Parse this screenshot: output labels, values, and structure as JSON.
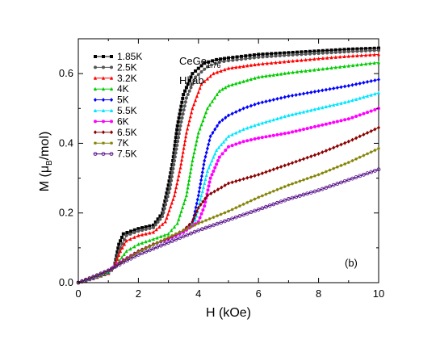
{
  "chart_data": {
    "type": "line",
    "xlabel_prefix": "H (kOe)",
    "xlabel": "H (kOe)",
    "ylabel_main": "M (",
    "ylabel_mu": "μ",
    "ylabel_sub": "B",
    "ylabel_tail": "/mol)",
    "xlim": [
      0,
      10
    ],
    "ylim": [
      0,
      0.7
    ],
    "xticks": [
      "0",
      "2",
      "4",
      "6",
      "8",
      "10"
    ],
    "yticks": [
      "0.0",
      "0.2",
      "0.4",
      "0.6"
    ],
    "grid": false,
    "legend_position": "top-left",
    "annotations": {
      "compound": "CeGe",
      "compound_sub": "1.76",
      "field_dir": "H||ab",
      "panel": "(b)"
    },
    "series": [
      {
        "name": "1.85K",
        "color": "#000000",
        "marker": "square",
        "x": [
          0,
          0.5,
          1.0,
          1.2,
          1.35,
          1.5,
          2.0,
          2.5,
          2.8,
          3.0,
          3.15,
          3.3,
          3.5,
          3.8,
          4.2,
          4.6,
          5.0,
          6.0,
          7.0,
          8.0,
          9.0,
          10.0
        ],
        "y": [
          0,
          0.012,
          0.027,
          0.045,
          0.11,
          0.14,
          0.155,
          0.165,
          0.2,
          0.28,
          0.35,
          0.45,
          0.54,
          0.6,
          0.63,
          0.64,
          0.645,
          0.655,
          0.66,
          0.665,
          0.67,
          0.673
        ]
      },
      {
        "name": "2.5K",
        "color": "#555555",
        "marker": "circle",
        "x": [
          0,
          0.5,
          1.0,
          1.2,
          1.4,
          1.6,
          2.0,
          2.5,
          2.8,
          3.05,
          3.2,
          3.4,
          3.6,
          3.9,
          4.3,
          4.7,
          5.0,
          6.0,
          7.0,
          8.0,
          9.0,
          10.0
        ],
        "y": [
          0,
          0.012,
          0.027,
          0.045,
          0.1,
          0.135,
          0.148,
          0.158,
          0.19,
          0.27,
          0.35,
          0.45,
          0.53,
          0.59,
          0.62,
          0.633,
          0.637,
          0.647,
          0.653,
          0.658,
          0.663,
          0.667
        ]
      },
      {
        "name": "3.2K",
        "color": "#ff0000",
        "marker": "triangle",
        "x": [
          0,
          0.5,
          1.0,
          1.2,
          1.4,
          1.6,
          2.0,
          2.5,
          2.9,
          3.2,
          3.4,
          3.6,
          3.8,
          4.1,
          4.5,
          5.0,
          6.0,
          7.0,
          8.0,
          9.0,
          10.0
        ],
        "y": [
          0,
          0.013,
          0.028,
          0.045,
          0.09,
          0.12,
          0.135,
          0.145,
          0.175,
          0.25,
          0.33,
          0.43,
          0.5,
          0.57,
          0.6,
          0.615,
          0.627,
          0.635,
          0.643,
          0.65,
          0.655
        ]
      },
      {
        "name": "4K",
        "color": "#00cc00",
        "marker": "triangle",
        "x": [
          0,
          0.5,
          1.0,
          1.3,
          1.6,
          2.0,
          2.5,
          3.0,
          3.3,
          3.6,
          3.8,
          4.0,
          4.3,
          4.7,
          5.0,
          6.0,
          7.0,
          8.0,
          9.0,
          10.0
        ],
        "y": [
          0,
          0.014,
          0.03,
          0.055,
          0.09,
          0.11,
          0.125,
          0.14,
          0.17,
          0.25,
          0.35,
          0.43,
          0.5,
          0.55,
          0.565,
          0.59,
          0.602,
          0.612,
          0.622,
          0.632
        ]
      },
      {
        "name": "5K",
        "color": "#0000ff",
        "marker": "diamond",
        "x": [
          0,
          0.5,
          1.0,
          1.5,
          2.0,
          2.5,
          3.0,
          3.5,
          3.8,
          4.0,
          4.2,
          4.4,
          4.7,
          5.0,
          5.5,
          6.0,
          7.0,
          8.0,
          9.0,
          10.0
        ],
        "y": [
          0,
          0.014,
          0.032,
          0.065,
          0.09,
          0.11,
          0.125,
          0.145,
          0.17,
          0.25,
          0.35,
          0.42,
          0.46,
          0.48,
          0.5,
          0.515,
          0.535,
          0.55,
          0.565,
          0.583
        ]
      },
      {
        "name": "5.5K",
        "color": "#00e5ff",
        "marker": "triangle",
        "x": [
          0,
          0.5,
          1.0,
          1.5,
          2.0,
          2.5,
          3.0,
          3.5,
          3.9,
          4.1,
          4.3,
          4.6,
          5.0,
          5.5,
          6.0,
          7.0,
          8.0,
          9.0,
          10.0
        ],
        "y": [
          0,
          0.014,
          0.033,
          0.065,
          0.09,
          0.11,
          0.125,
          0.145,
          0.18,
          0.25,
          0.32,
          0.38,
          0.42,
          0.44,
          0.455,
          0.48,
          0.5,
          0.52,
          0.545
        ]
      },
      {
        "name": "6K",
        "color": "#ff00ff",
        "marker": "circle",
        "x": [
          0,
          0.5,
          1.0,
          1.5,
          2.0,
          2.5,
          3.0,
          3.5,
          4.0,
          4.2,
          4.4,
          4.7,
          5.0,
          5.5,
          6.0,
          7.0,
          8.0,
          9.0,
          10.0
        ],
        "y": [
          0,
          0.015,
          0.034,
          0.065,
          0.09,
          0.11,
          0.125,
          0.145,
          0.175,
          0.22,
          0.3,
          0.36,
          0.39,
          0.405,
          0.415,
          0.43,
          0.45,
          0.47,
          0.5
        ]
      },
      {
        "name": "6.5K",
        "color": "#8b0000",
        "marker": "diamond",
        "x": [
          0,
          0.5,
          1.0,
          1.5,
          2.0,
          2.5,
          3.0,
          3.5,
          3.8,
          4.0,
          4.3,
          5.0,
          6.0,
          7.0,
          8.0,
          9.0,
          10.0
        ],
        "y": [
          0,
          0.015,
          0.034,
          0.063,
          0.09,
          0.11,
          0.128,
          0.15,
          0.175,
          0.215,
          0.25,
          0.285,
          0.31,
          0.34,
          0.37,
          0.405,
          0.445
        ]
      },
      {
        "name": "7K",
        "color": "#808000",
        "marker": "star",
        "x": [
          0,
          0.5,
          1.0,
          1.5,
          2.0,
          3.0,
          4.0,
          5.0,
          6.0,
          7.0,
          8.0,
          9.0,
          10.0
        ],
        "y": [
          0,
          0.016,
          0.034,
          0.062,
          0.088,
          0.13,
          0.17,
          0.205,
          0.245,
          0.28,
          0.31,
          0.345,
          0.385
        ]
      },
      {
        "name": "7.5K",
        "color": "#4b0082",
        "marker": "circle-open",
        "x": [
          0,
          0.5,
          1.0,
          1.5,
          2.0,
          3.0,
          4.0,
          5.0,
          6.0,
          7.0,
          8.0,
          9.0,
          10.0
        ],
        "y": [
          0,
          0.017,
          0.035,
          0.058,
          0.08,
          0.115,
          0.15,
          0.18,
          0.21,
          0.24,
          0.265,
          0.295,
          0.325
        ]
      }
    ]
  }
}
